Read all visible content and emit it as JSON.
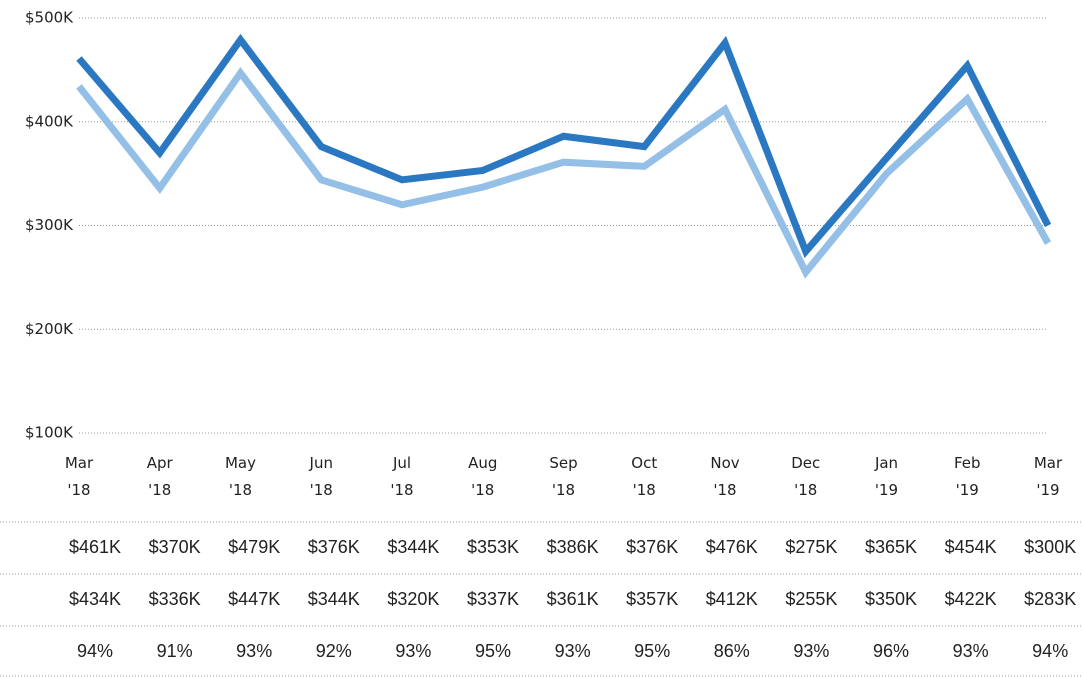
{
  "chart_data": {
    "type": "line",
    "categories": [
      "Mar\n'18",
      "Apr\n'18",
      "May\n'18",
      "Jun\n'18",
      "Jul\n'18",
      "Aug\n'18",
      "Sep\n'18",
      "Oct\n'18",
      "Nov\n'18",
      "Dec\n'18",
      "Jan\n'19",
      "Feb\n'19",
      "Mar\n'19"
    ],
    "series": [
      {
        "color": "#2a78c2",
        "values": [
          461000,
          370000,
          479000,
          376000,
          344000,
          353000,
          386000,
          376000,
          476000,
          275000,
          365000,
          454000,
          300000
        ],
        "value_labels": [
          "$461K",
          "$370K",
          "$479K",
          "$376K",
          "$344K",
          "$353K",
          "$386K",
          "$376K",
          "$476K",
          "$275K",
          "$365K",
          "$454K",
          "$300K"
        ]
      },
      {
        "color": "#94bfe6",
        "values": [
          434000,
          336000,
          447000,
          344000,
          320000,
          337000,
          361000,
          357000,
          412000,
          255000,
          350000,
          422000,
          283000
        ],
        "value_labels": [
          "$434K",
          "$336K",
          "$447K",
          "$344K",
          "$320K",
          "$337K",
          "$361K",
          "$357K",
          "$412K",
          "$255K",
          "$350K",
          "$422K",
          "$283K"
        ]
      }
    ],
    "ratio": {
      "values": [
        94,
        91,
        93,
        92,
        93,
        95,
        93,
        95,
        86,
        93,
        96,
        93,
        94
      ],
      "value_labels": [
        "94%",
        "91%",
        "93%",
        "92%",
        "93%",
        "95%",
        "93%",
        "95%",
        "86%",
        "93%",
        "96%",
        "93%",
        "94%"
      ]
    },
    "ylim": [
      100000,
      500000
    ],
    "yticks": [
      {
        "value": 100000,
        "label": "$100K"
      },
      {
        "value": 200000,
        "label": "$200K"
      },
      {
        "value": 300000,
        "label": "$300K"
      },
      {
        "value": 400000,
        "label": "$400K"
      },
      {
        "value": 500000,
        "label": "$500K"
      }
    ],
    "grid": true
  }
}
